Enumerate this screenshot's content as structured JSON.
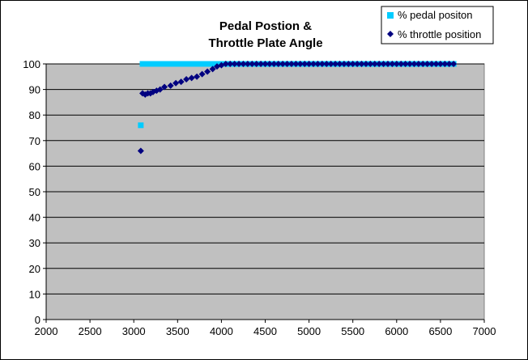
{
  "chart_data": {
    "type": "scatter",
    "title": [
      "Pedal Postion &",
      "Throttle Plate Angle"
    ],
    "xlabel": "",
    "ylabel": "",
    "xlim": [
      2000,
      7000
    ],
    "ylim": [
      0,
      100
    ],
    "x_ticks": [
      2000,
      2500,
      3000,
      3500,
      4000,
      4500,
      5000,
      5500,
      6000,
      6500,
      7000
    ],
    "y_ticks": [
      0,
      10,
      20,
      30,
      40,
      50,
      60,
      70,
      80,
      90,
      100
    ],
    "grid": "horizontal",
    "plot_background": "#c0c0c0",
    "legend_position": "top-right",
    "series": [
      {
        "name": "% pedal positon",
        "marker": "square",
        "color": "#00ccff",
        "points": [
          [
            3080,
            76
          ],
          [
            3100,
            100
          ],
          [
            3150,
            100
          ],
          [
            3200,
            100
          ],
          [
            3250,
            100
          ],
          [
            3300,
            100
          ],
          [
            3350,
            100
          ],
          [
            3400,
            100
          ],
          [
            3450,
            100
          ],
          [
            3500,
            100
          ],
          [
            3550,
            100
          ],
          [
            3600,
            100
          ],
          [
            3650,
            100
          ],
          [
            3700,
            100
          ],
          [
            3750,
            100
          ],
          [
            3800,
            100
          ],
          [
            3850,
            100
          ],
          [
            3900,
            100
          ],
          [
            3950,
            100
          ],
          [
            4000,
            100
          ],
          [
            4050,
            100
          ],
          [
            4100,
            100
          ],
          [
            4150,
            100
          ],
          [
            4200,
            100
          ],
          [
            4250,
            100
          ],
          [
            4300,
            100
          ],
          [
            4350,
            100
          ],
          [
            4400,
            100
          ],
          [
            4450,
            100
          ],
          [
            4500,
            100
          ],
          [
            4550,
            100
          ],
          [
            4600,
            100
          ],
          [
            4650,
            100
          ],
          [
            4700,
            100
          ],
          [
            4750,
            100
          ],
          [
            4800,
            100
          ],
          [
            4850,
            100
          ],
          [
            4900,
            100
          ],
          [
            4950,
            100
          ],
          [
            5000,
            100
          ],
          [
            5050,
            100
          ],
          [
            5100,
            100
          ],
          [
            5150,
            100
          ],
          [
            5200,
            100
          ],
          [
            5250,
            100
          ],
          [
            5300,
            100
          ],
          [
            5350,
            100
          ],
          [
            5400,
            100
          ],
          [
            5450,
            100
          ],
          [
            5500,
            100
          ],
          [
            5550,
            100
          ],
          [
            5600,
            100
          ],
          [
            5650,
            100
          ],
          [
            5700,
            100
          ],
          [
            5750,
            100
          ],
          [
            5800,
            100
          ],
          [
            5850,
            100
          ],
          [
            5900,
            100
          ],
          [
            5950,
            100
          ],
          [
            6000,
            100
          ],
          [
            6050,
            100
          ],
          [
            6100,
            100
          ],
          [
            6150,
            100
          ],
          [
            6200,
            100
          ],
          [
            6250,
            100
          ],
          [
            6300,
            100
          ],
          [
            6350,
            100
          ],
          [
            6400,
            100
          ],
          [
            6450,
            100
          ],
          [
            6500,
            100
          ],
          [
            6550,
            100
          ],
          [
            6600,
            100
          ],
          [
            6650,
            100
          ]
        ]
      },
      {
        "name": "% throttle position",
        "marker": "diamond",
        "color": "#000080",
        "points": [
          [
            3080,
            66
          ],
          [
            3100,
            88.5
          ],
          [
            3130,
            88
          ],
          [
            3160,
            88.5
          ],
          [
            3190,
            88.5
          ],
          [
            3220,
            89
          ],
          [
            3260,
            89.5
          ],
          [
            3300,
            90
          ],
          [
            3350,
            91
          ],
          [
            3420,
            91.5
          ],
          [
            3480,
            92.5
          ],
          [
            3540,
            93
          ],
          [
            3600,
            94
          ],
          [
            3660,
            94.5
          ],
          [
            3720,
            95
          ],
          [
            3780,
            96
          ],
          [
            3840,
            97
          ],
          [
            3900,
            98
          ],
          [
            3950,
            99
          ],
          [
            4000,
            99.5
          ],
          [
            4050,
            100
          ],
          [
            4100,
            100
          ],
          [
            4150,
            100
          ],
          [
            4200,
            100
          ],
          [
            4250,
            100
          ],
          [
            4300,
            100
          ],
          [
            4350,
            100
          ],
          [
            4400,
            100
          ],
          [
            4450,
            100
          ],
          [
            4500,
            100
          ],
          [
            4550,
            100
          ],
          [
            4600,
            100
          ],
          [
            4650,
            100
          ],
          [
            4700,
            100
          ],
          [
            4750,
            100
          ],
          [
            4800,
            100
          ],
          [
            4850,
            100
          ],
          [
            4900,
            100
          ],
          [
            4950,
            100
          ],
          [
            5000,
            100
          ],
          [
            5050,
            100
          ],
          [
            5100,
            100
          ],
          [
            5150,
            100
          ],
          [
            5200,
            100
          ],
          [
            5250,
            100
          ],
          [
            5300,
            100
          ],
          [
            5350,
            100
          ],
          [
            5400,
            100
          ],
          [
            5450,
            100
          ],
          [
            5500,
            100
          ],
          [
            5550,
            100
          ],
          [
            5600,
            100
          ],
          [
            5650,
            100
          ],
          [
            5700,
            100
          ],
          [
            5750,
            100
          ],
          [
            5800,
            100
          ],
          [
            5850,
            100
          ],
          [
            5900,
            100
          ],
          [
            5950,
            100
          ],
          [
            6000,
            100
          ],
          [
            6050,
            100
          ],
          [
            6100,
            100
          ],
          [
            6150,
            100
          ],
          [
            6200,
            100
          ],
          [
            6250,
            100
          ],
          [
            6300,
            100
          ],
          [
            6350,
            100
          ],
          [
            6400,
            100
          ],
          [
            6450,
            100
          ],
          [
            6500,
            100
          ],
          [
            6550,
            100
          ],
          [
            6600,
            100
          ],
          [
            6650,
            100
          ]
        ]
      }
    ]
  }
}
